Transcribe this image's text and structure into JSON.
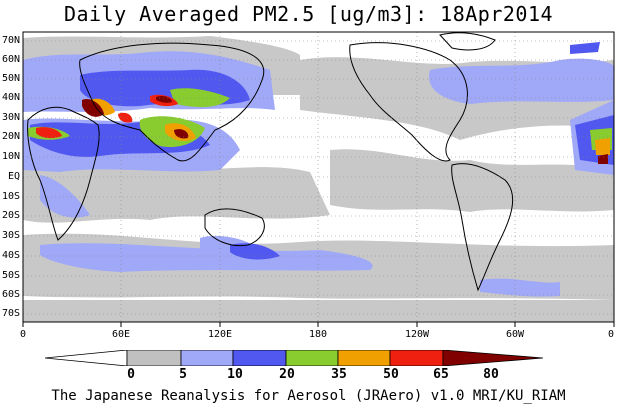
{
  "title": "Daily Averaged PM2.5 [ug/m3]: 18Apr2014",
  "lat_labels": [
    "70N",
    "60N",
    "50N",
    "40N",
    "30N",
    "20N",
    "10N",
    "EQ",
    "10S",
    "20S",
    "30S",
    "40S",
    "50S",
    "60S",
    "70S"
  ],
  "lon_labels": [
    "0",
    "60E",
    "120E",
    "180",
    "120W",
    "60W",
    "0"
  ],
  "colorbar": {
    "levels": [
      "0",
      "5",
      "10",
      "20",
      "35",
      "50",
      "65",
      "80"
    ],
    "colors": [
      "#ffffff",
      "#c0c0c0",
      "#a0a8f8",
      "#5058f0",
      "#88cc30",
      "#f0a000",
      "#f02010",
      "#800000"
    ]
  },
  "credit": "The Japanese Reanalysis for Aerosol (JRAero) v1.0 MRI/KU_RIAM"
}
